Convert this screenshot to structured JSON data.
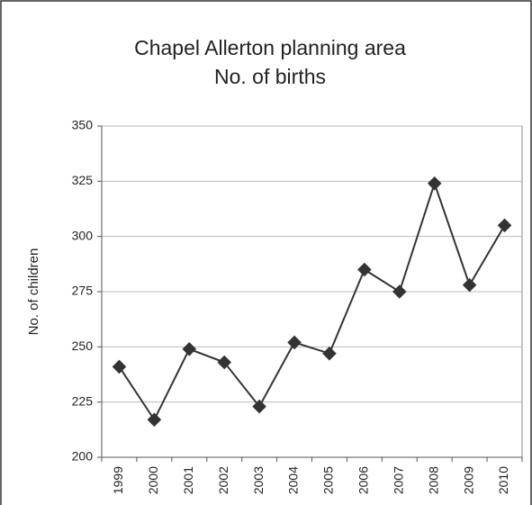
{
  "chart_data": {
    "type": "line",
    "title": [
      "Chapel Allerton planning area",
      "No. of births"
    ],
    "y_label": "No. of children",
    "categories": [
      "1999",
      "2000",
      "2001",
      "2002",
      "2003",
      "2004",
      "2005",
      "2006",
      "2007",
      "2008",
      "2009",
      "2010"
    ],
    "values": [
      241,
      217,
      249,
      243,
      223,
      252,
      247,
      285,
      275,
      324,
      278,
      305
    ],
    "color": "#333333",
    "ylim": [
      200,
      350
    ],
    "yticks": [
      200,
      225,
      250,
      275,
      300,
      325,
      350
    ],
    "grid": true
  }
}
